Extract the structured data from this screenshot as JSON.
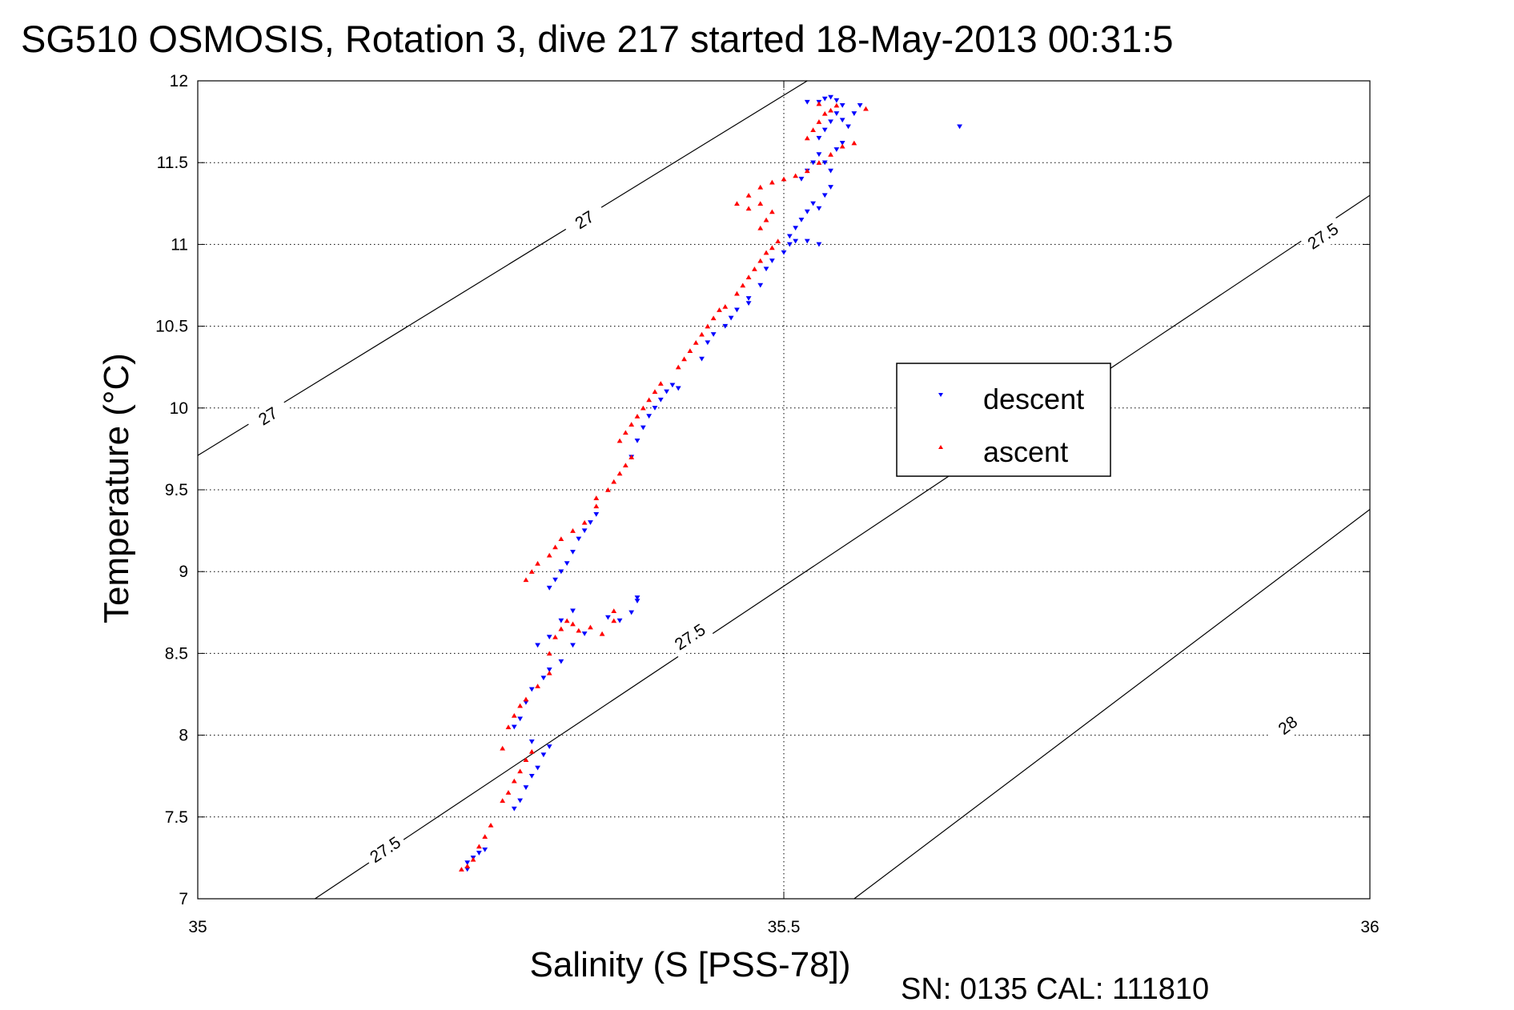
{
  "chart_data": {
    "type": "scatter",
    "title": "SG510 OSMOSIS, Rotation 3, dive 217 started 18-May-2013 00:31:5",
    "xlabel": "Salinity (S [PSS-78])",
    "ylabel": "Temperature (°C)",
    "footer": "SN: 0135  CAL: 111810",
    "xlim": [
      35,
      36
    ],
    "ylim": [
      7,
      12
    ],
    "xticks": [
      "35",
      "35.5",
      "36"
    ],
    "yticks": [
      "7",
      "7.5",
      "8",
      "8.5",
      "9",
      "9.5",
      "10",
      "10.5",
      "11",
      "11.5",
      "12"
    ],
    "grid": true,
    "legend_position": "right",
    "colors": {
      "descent": "#0000ff",
      "ascent": "#ff0000",
      "contour": "#000000"
    },
    "density_contours": [
      {
        "label": "27",
        "points": [
          [
            35.0,
            9.71
          ],
          [
            35.52,
            12.0
          ]
        ],
        "labels_at": [
          [
            35.06,
            9.95
          ],
          [
            35.33,
            11.15
          ]
        ]
      },
      {
        "label": "27.5",
        "points": [
          [
            35.1,
            7.0
          ],
          [
            36.0,
            11.3
          ]
        ],
        "labels_at": [
          [
            35.16,
            7.3
          ],
          [
            35.42,
            8.6
          ],
          [
            35.96,
            11.05
          ]
        ]
      },
      {
        "label": "28",
        "points": [
          [
            35.56,
            7.0
          ],
          [
            36.0,
            9.38
          ]
        ],
        "labels_at": [
          [
            35.93,
            8.06
          ]
        ]
      }
    ],
    "series": [
      {
        "name": "descent",
        "marker": "triangle-down",
        "points": [
          [
            35.23,
            7.18
          ],
          [
            35.23,
            7.22
          ],
          [
            35.235,
            7.25
          ],
          [
            35.24,
            7.28
          ],
          [
            35.245,
            7.3
          ],
          [
            35.27,
            7.55
          ],
          [
            35.275,
            7.6
          ],
          [
            35.28,
            7.68
          ],
          [
            35.285,
            7.75
          ],
          [
            35.29,
            7.8
          ],
          [
            35.295,
            7.88
          ],
          [
            35.3,
            7.93
          ],
          [
            35.285,
            7.96
          ],
          [
            35.27,
            8.05
          ],
          [
            35.275,
            8.1
          ],
          [
            35.28,
            8.2
          ],
          [
            35.285,
            8.28
          ],
          [
            35.295,
            8.35
          ],
          [
            35.3,
            8.4
          ],
          [
            35.31,
            8.45
          ],
          [
            35.32,
            8.55
          ],
          [
            35.33,
            8.62
          ],
          [
            35.29,
            8.55
          ],
          [
            35.3,
            8.6
          ],
          [
            35.31,
            8.7
          ],
          [
            35.32,
            8.76
          ],
          [
            35.35,
            8.72
          ],
          [
            35.36,
            8.7
          ],
          [
            35.37,
            8.75
          ],
          [
            35.375,
            8.82
          ],
          [
            35.375,
            8.84
          ],
          [
            35.3,
            8.9
          ],
          [
            35.305,
            8.95
          ],
          [
            35.31,
            9.0
          ],
          [
            35.315,
            9.05
          ],
          [
            35.32,
            9.12
          ],
          [
            35.325,
            9.2
          ],
          [
            35.33,
            9.25
          ],
          [
            35.335,
            9.3
          ],
          [
            35.34,
            9.35
          ],
          [
            35.37,
            9.7
          ],
          [
            35.375,
            9.8
          ],
          [
            35.38,
            9.88
          ],
          [
            35.385,
            9.95
          ],
          [
            35.39,
            10.0
          ],
          [
            35.395,
            10.05
          ],
          [
            35.4,
            10.1
          ],
          [
            35.405,
            10.14
          ],
          [
            35.41,
            10.12
          ],
          [
            35.43,
            10.3
          ],
          [
            35.435,
            10.4
          ],
          [
            35.44,
            10.45
          ],
          [
            35.45,
            10.5
          ],
          [
            35.455,
            10.55
          ],
          [
            35.46,
            10.6
          ],
          [
            35.47,
            10.64
          ],
          [
            35.47,
            10.67
          ],
          [
            35.48,
            10.75
          ],
          [
            35.485,
            10.85
          ],
          [
            35.49,
            10.9
          ],
          [
            35.5,
            10.95
          ],
          [
            35.505,
            11.0
          ],
          [
            35.51,
            11.02
          ],
          [
            35.52,
            11.02
          ],
          [
            35.53,
            11.0
          ],
          [
            35.505,
            11.05
          ],
          [
            35.51,
            11.1
          ],
          [
            35.515,
            11.15
          ],
          [
            35.52,
            11.2
          ],
          [
            35.525,
            11.25
          ],
          [
            35.53,
            11.22
          ],
          [
            35.535,
            11.3
          ],
          [
            35.54,
            11.35
          ],
          [
            35.515,
            11.4
          ],
          [
            35.52,
            11.45
          ],
          [
            35.525,
            11.5
          ],
          [
            35.53,
            11.55
          ],
          [
            35.535,
            11.5
          ],
          [
            35.54,
            11.45
          ],
          [
            35.545,
            11.58
          ],
          [
            35.55,
            11.62
          ],
          [
            35.53,
            11.65
          ],
          [
            35.535,
            11.7
          ],
          [
            35.54,
            11.75
          ],
          [
            35.545,
            11.8
          ],
          [
            35.55,
            11.76
          ],
          [
            35.555,
            11.72
          ],
          [
            35.56,
            11.8
          ],
          [
            35.565,
            11.85
          ],
          [
            35.53,
            11.87
          ],
          [
            35.535,
            11.89
          ],
          [
            35.54,
            11.9
          ],
          [
            35.545,
            11.88
          ],
          [
            35.55,
            11.85
          ],
          [
            35.52,
            11.87
          ],
          [
            35.65,
            11.72
          ]
        ]
      },
      {
        "name": "ascent",
        "marker": "triangle-up",
        "points": [
          [
            35.225,
            7.18
          ],
          [
            35.23,
            7.2
          ],
          [
            35.235,
            7.24
          ],
          [
            35.24,
            7.32
          ],
          [
            35.245,
            7.38
          ],
          [
            35.25,
            7.45
          ],
          [
            35.26,
            7.6
          ],
          [
            35.265,
            7.65
          ],
          [
            35.27,
            7.72
          ],
          [
            35.275,
            7.78
          ],
          [
            35.28,
            7.85
          ],
          [
            35.285,
            7.9
          ],
          [
            35.26,
            7.92
          ],
          [
            35.265,
            8.05
          ],
          [
            35.27,
            8.12
          ],
          [
            35.275,
            8.18
          ],
          [
            35.28,
            8.22
          ],
          [
            35.29,
            8.3
          ],
          [
            35.3,
            8.38
          ],
          [
            35.3,
            8.5
          ],
          [
            35.305,
            8.6
          ],
          [
            35.31,
            8.65
          ],
          [
            35.315,
            8.7
          ],
          [
            35.32,
            8.68
          ],
          [
            35.325,
            8.64
          ],
          [
            35.335,
            8.66
          ],
          [
            35.345,
            8.62
          ],
          [
            35.355,
            8.7
          ],
          [
            35.355,
            8.76
          ],
          [
            35.28,
            8.95
          ],
          [
            35.285,
            9.0
          ],
          [
            35.29,
            9.05
          ],
          [
            35.3,
            9.1
          ],
          [
            35.305,
            9.15
          ],
          [
            35.31,
            9.2
          ],
          [
            35.32,
            9.25
          ],
          [
            35.33,
            9.3
          ],
          [
            35.34,
            9.4
          ],
          [
            35.34,
            9.45
          ],
          [
            35.35,
            9.5
          ],
          [
            35.355,
            9.55
          ],
          [
            35.36,
            9.6
          ],
          [
            35.365,
            9.65
          ],
          [
            35.37,
            9.7
          ],
          [
            35.36,
            9.8
          ],
          [
            35.365,
            9.85
          ],
          [
            35.37,
            9.9
          ],
          [
            35.375,
            9.95
          ],
          [
            35.38,
            10.0
          ],
          [
            35.385,
            10.05
          ],
          [
            35.39,
            10.1
          ],
          [
            35.395,
            10.15
          ],
          [
            35.41,
            10.25
          ],
          [
            35.415,
            10.3
          ],
          [
            35.42,
            10.35
          ],
          [
            35.425,
            10.4
          ],
          [
            35.43,
            10.45
          ],
          [
            35.435,
            10.5
          ],
          [
            35.44,
            10.55
          ],
          [
            35.445,
            10.6
          ],
          [
            35.45,
            10.62
          ],
          [
            35.46,
            10.7
          ],
          [
            35.465,
            10.75
          ],
          [
            35.47,
            10.8
          ],
          [
            35.475,
            10.85
          ],
          [
            35.48,
            10.9
          ],
          [
            35.485,
            10.95
          ],
          [
            35.49,
            10.98
          ],
          [
            35.495,
            11.02
          ],
          [
            35.48,
            11.1
          ],
          [
            35.485,
            11.15
          ],
          [
            35.49,
            11.2
          ],
          [
            35.48,
            11.25
          ],
          [
            35.47,
            11.22
          ],
          [
            35.46,
            11.25
          ],
          [
            35.47,
            11.3
          ],
          [
            35.48,
            11.35
          ],
          [
            35.49,
            11.38
          ],
          [
            35.5,
            11.4
          ],
          [
            35.51,
            11.42
          ],
          [
            35.52,
            11.45
          ],
          [
            35.53,
            11.5
          ],
          [
            35.54,
            11.55
          ],
          [
            35.55,
            11.6
          ],
          [
            35.56,
            11.62
          ],
          [
            35.52,
            11.65
          ],
          [
            35.525,
            11.7
          ],
          [
            35.53,
            11.75
          ],
          [
            35.535,
            11.8
          ],
          [
            35.54,
            11.82
          ],
          [
            35.545,
            11.85
          ],
          [
            35.53,
            11.86
          ],
          [
            35.57,
            11.83
          ]
        ]
      }
    ]
  }
}
